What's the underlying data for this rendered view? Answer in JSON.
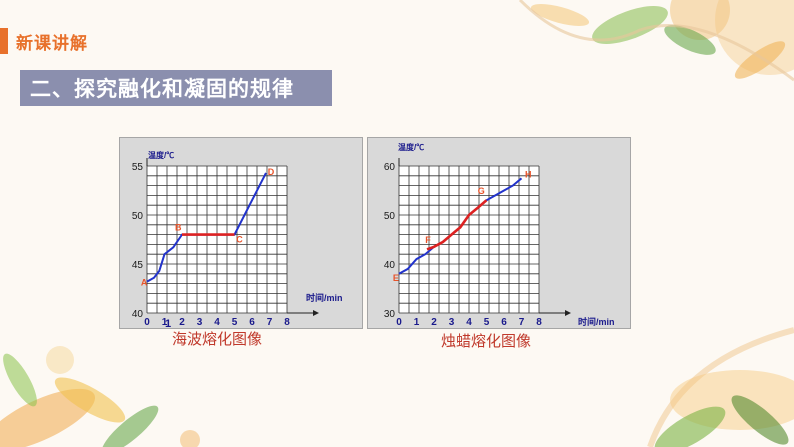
{
  "header": {
    "section_label": "新课讲解"
  },
  "title": {
    "text": "二、探究融化和凝固的规律"
  },
  "colors": {
    "accent": "#e8712b",
    "title_band": "#8b8fae",
    "line_blue": "#2233cc",
    "line_red": "#dd2222",
    "point_label": "#e8542b",
    "caption": "#c0392b"
  },
  "chart_data": [
    {
      "type": "line",
      "ylabel": "温度/℃",
      "xlabel": "时间/min",
      "xlim": [
        0,
        8
      ],
      "ylim": [
        40,
        55
      ],
      "xticks": [
        "0",
        "1",
        "2",
        "3",
        "4",
        "5",
        "6",
        "7",
        "8"
      ],
      "yticks": [
        "40",
        "45",
        "50",
        "55"
      ],
      "extra_label": "1",
      "series": [
        {
          "color": "blue",
          "points": [
            [
              0,
              43.2
            ],
            [
              0.4,
              43.6
            ],
            [
              0.7,
              44.3
            ],
            [
              1,
              46
            ],
            [
              1.5,
              46.7
            ],
            [
              2,
              48
            ],
            [
              5,
              48
            ],
            [
              6.8,
              54.3
            ]
          ]
        },
        {
          "color": "red",
          "points": [
            [
              2,
              48
            ],
            [
              5,
              48
            ]
          ]
        }
      ],
      "point_labels": [
        {
          "text": "A",
          "x": -0.35,
          "y": 42.8
        },
        {
          "text": "B",
          "x": 1.6,
          "y": 48.4
        },
        {
          "text": "C",
          "x": 5.1,
          "y": 47.2
        },
        {
          "text": "D",
          "x": 6.9,
          "y": 54.1
        }
      ],
      "caption": "海波熔化图像"
    },
    {
      "type": "line",
      "ylabel": "温度/℃",
      "xlabel": "时间/min",
      "xlim": [
        0,
        8
      ],
      "ylim": [
        30,
        60
      ],
      "xticks": [
        "0",
        "1",
        "2",
        "3",
        "4",
        "5",
        "6",
        "7",
        "8"
      ],
      "yticks": [
        "30",
        "40",
        "50",
        "60"
      ],
      "series": [
        {
          "color": "blue",
          "points": [
            [
              0,
              38
            ],
            [
              0.5,
              39
            ],
            [
              1,
              41
            ],
            [
              1.5,
              42
            ],
            [
              2,
              43.5
            ],
            [
              2.5,
              44.5
            ],
            [
              3,
              46
            ],
            [
              3.5,
              47.5
            ],
            [
              4,
              50
            ],
            [
              4.5,
              51.5
            ],
            [
              5,
              53
            ],
            [
              5.5,
              54
            ],
            [
              6,
              55
            ],
            [
              6.5,
              56
            ],
            [
              7,
              57.5
            ]
          ]
        },
        {
          "color": "red",
          "points": [
            [
              1.6,
              43
            ],
            [
              2,
              43.5
            ],
            [
              2.5,
              44.5
            ],
            [
              3,
              46
            ],
            [
              3.5,
              47.5
            ],
            [
              4,
              50
            ],
            [
              4.5,
              51.5
            ],
            [
              5,
              53
            ]
          ]
        }
      ],
      "point_labels": [
        {
          "text": "E",
          "x": -0.35,
          "y": 36.5
        },
        {
          "text": "F",
          "x": 1.5,
          "y": 44.3
        },
        {
          "text": "G",
          "x": 4.5,
          "y": 54.3
        },
        {
          "text": "H",
          "x": 7.2,
          "y": 57.7
        }
      ],
      "caption": "烛蜡熔化图像"
    }
  ]
}
